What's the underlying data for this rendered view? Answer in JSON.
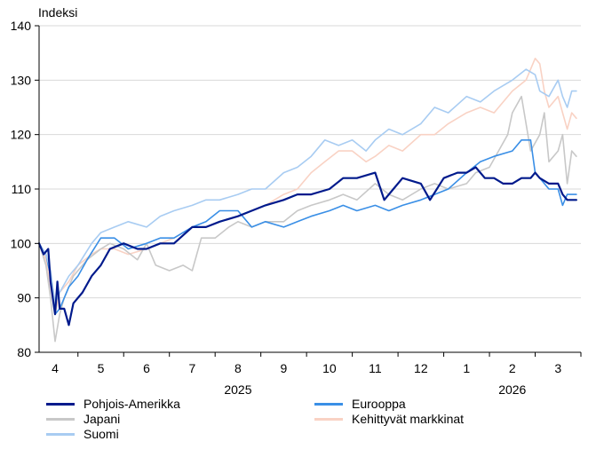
{
  "chart_data": {
    "type": "line",
    "ylabel": "Indeksi",
    "ylim": [
      80,
      140
    ],
    "yticks": [
      80,
      90,
      100,
      110,
      120,
      130,
      140
    ],
    "xlim": [
      3.65,
      15.5
    ],
    "month_labels": [
      {
        "label": "4",
        "x": 4.0
      },
      {
        "label": "5",
        "x": 5.0
      },
      {
        "label": "6",
        "x": 6.0
      },
      {
        "label": "7",
        "x": 7.0
      },
      {
        "label": "8",
        "x": 8.0
      },
      {
        "label": "9",
        "x": 9.0
      },
      {
        "label": "10",
        "x": 10.0
      },
      {
        "label": "11",
        "x": 11.0
      },
      {
        "label": "12",
        "x": 12.0
      },
      {
        "label": "1",
        "x": 13.0
      },
      {
        "label": "2",
        "x": 14.0
      },
      {
        "label": "3",
        "x": 15.0
      }
    ],
    "month_boundaries": [
      3.5,
      4.5,
      5.5,
      6.5,
      7.5,
      8.5,
      9.5,
      10.5,
      11.5,
      12.5,
      13.5,
      14.5,
      15.5
    ],
    "year_labels": [
      {
        "label": "2025",
        "x": 8.0
      },
      {
        "label": "2026",
        "x": 14.0
      }
    ],
    "series": [
      {
        "name": "Kehittyvät markkinat",
        "color": "#f9d2c4",
        "width": 1.6,
        "points": [
          [
            3.65,
            100
          ],
          [
            3.8,
            97
          ],
          [
            3.9,
            92
          ],
          [
            4.0,
            87
          ],
          [
            4.1,
            91
          ],
          [
            4.3,
            93
          ],
          [
            4.5,
            96
          ],
          [
            4.8,
            98
          ],
          [
            5.0,
            99
          ],
          [
            5.3,
            99
          ],
          [
            5.6,
            98
          ],
          [
            6.0,
            99
          ],
          [
            6.3,
            100
          ],
          [
            6.6,
            101
          ],
          [
            7.0,
            103
          ],
          [
            7.3,
            103
          ],
          [
            7.6,
            104
          ],
          [
            8.0,
            105
          ],
          [
            8.3,
            106
          ],
          [
            8.6,
            107
          ],
          [
            9.0,
            109
          ],
          [
            9.3,
            110
          ],
          [
            9.6,
            113
          ],
          [
            9.9,
            115
          ],
          [
            10.2,
            117
          ],
          [
            10.5,
            117
          ],
          [
            10.8,
            115
          ],
          [
            11.0,
            116
          ],
          [
            11.3,
            118
          ],
          [
            11.6,
            117
          ],
          [
            12.0,
            120
          ],
          [
            12.3,
            120
          ],
          [
            12.6,
            122
          ],
          [
            13.0,
            124
          ],
          [
            13.3,
            125
          ],
          [
            13.6,
            124
          ],
          [
            14.0,
            128
          ],
          [
            14.3,
            130
          ],
          [
            14.5,
            134
          ],
          [
            14.6,
            133
          ],
          [
            14.7,
            128
          ],
          [
            14.8,
            125
          ],
          [
            15.0,
            127
          ],
          [
            15.1,
            124
          ],
          [
            15.2,
            121
          ],
          [
            15.3,
            124
          ],
          [
            15.4,
            123
          ]
        ]
      },
      {
        "name": "Japani",
        "color": "#c8c8c8",
        "width": 1.6,
        "points": [
          [
            3.65,
            100
          ],
          [
            3.8,
            96
          ],
          [
            3.9,
            90
          ],
          [
            4.0,
            82
          ],
          [
            4.1,
            87
          ],
          [
            4.2,
            90
          ],
          [
            4.4,
            94
          ],
          [
            4.7,
            97
          ],
          [
            5.0,
            99
          ],
          [
            5.2,
            100
          ],
          [
            5.5,
            99
          ],
          [
            5.8,
            97
          ],
          [
            6.0,
            100
          ],
          [
            6.2,
            96
          ],
          [
            6.5,
            95
          ],
          [
            6.8,
            96
          ],
          [
            7.0,
            95
          ],
          [
            7.2,
            101
          ],
          [
            7.5,
            101
          ],
          [
            7.8,
            103
          ],
          [
            8.0,
            104
          ],
          [
            8.3,
            103
          ],
          [
            8.6,
            104
          ],
          [
            9.0,
            104
          ],
          [
            9.3,
            106
          ],
          [
            9.6,
            107
          ],
          [
            10.0,
            108
          ],
          [
            10.3,
            109
          ],
          [
            10.6,
            108
          ],
          [
            11.0,
            111
          ],
          [
            11.3,
            109
          ],
          [
            11.6,
            108
          ],
          [
            12.0,
            110
          ],
          [
            12.3,
            111
          ],
          [
            12.6,
            110
          ],
          [
            13.0,
            111
          ],
          [
            13.2,
            113
          ],
          [
            13.5,
            114
          ],
          [
            13.7,
            117
          ],
          [
            13.9,
            120
          ],
          [
            14.0,
            124
          ],
          [
            14.2,
            127
          ],
          [
            14.4,
            117
          ],
          [
            14.6,
            120
          ],
          [
            14.7,
            124
          ],
          [
            14.8,
            115
          ],
          [
            15.0,
            117
          ],
          [
            15.1,
            120
          ],
          [
            15.2,
            111
          ],
          [
            15.3,
            117
          ],
          [
            15.4,
            116
          ]
        ]
      },
      {
        "name": "Eurooppa",
        "color": "#3a8fe6",
        "width": 1.6,
        "points": [
          [
            3.65,
            100
          ],
          [
            3.8,
            98
          ],
          [
            3.9,
            94
          ],
          [
            4.0,
            87
          ],
          [
            4.1,
            88
          ],
          [
            4.3,
            92
          ],
          [
            4.5,
            94
          ],
          [
            4.7,
            97
          ],
          [
            5.0,
            101
          ],
          [
            5.3,
            101
          ],
          [
            5.6,
            99
          ],
          [
            6.0,
            100
          ],
          [
            6.3,
            101
          ],
          [
            6.6,
            101
          ],
          [
            7.0,
            103
          ],
          [
            7.3,
            104
          ],
          [
            7.6,
            106
          ],
          [
            8.0,
            106
          ],
          [
            8.3,
            103
          ],
          [
            8.6,
            104
          ],
          [
            9.0,
            103
          ],
          [
            9.3,
            104
          ],
          [
            9.6,
            105
          ],
          [
            10.0,
            106
          ],
          [
            10.3,
            107
          ],
          [
            10.6,
            106
          ],
          [
            11.0,
            107
          ],
          [
            11.3,
            106
          ],
          [
            11.6,
            107
          ],
          [
            12.0,
            108
          ],
          [
            12.3,
            109
          ],
          [
            12.6,
            110
          ],
          [
            13.0,
            113
          ],
          [
            13.3,
            115
          ],
          [
            13.6,
            116
          ],
          [
            14.0,
            117
          ],
          [
            14.2,
            119
          ],
          [
            14.4,
            119
          ],
          [
            14.5,
            113
          ],
          [
            14.6,
            112
          ],
          [
            14.8,
            110
          ],
          [
            15.0,
            110
          ],
          [
            15.1,
            107
          ],
          [
            15.2,
            109
          ],
          [
            15.3,
            109
          ],
          [
            15.4,
            109
          ]
        ]
      },
      {
        "name": "Suomi",
        "color": "#a8ccf2",
        "width": 1.6,
        "points": [
          [
            3.65,
            100
          ],
          [
            3.8,
            98
          ],
          [
            3.9,
            95
          ],
          [
            4.0,
            89
          ],
          [
            4.1,
            91
          ],
          [
            4.3,
            94
          ],
          [
            4.5,
            96
          ],
          [
            4.8,
            100
          ],
          [
            5.0,
            102
          ],
          [
            5.3,
            103
          ],
          [
            5.6,
            104
          ],
          [
            6.0,
            103
          ],
          [
            6.3,
            105
          ],
          [
            6.6,
            106
          ],
          [
            7.0,
            107
          ],
          [
            7.3,
            108
          ],
          [
            7.6,
            108
          ],
          [
            8.0,
            109
          ],
          [
            8.3,
            110
          ],
          [
            8.6,
            110
          ],
          [
            9.0,
            113
          ],
          [
            9.3,
            114
          ],
          [
            9.6,
            116
          ],
          [
            9.9,
            119
          ],
          [
            10.2,
            118
          ],
          [
            10.5,
            119
          ],
          [
            10.8,
            117
          ],
          [
            11.0,
            119
          ],
          [
            11.3,
            121
          ],
          [
            11.6,
            120
          ],
          [
            12.0,
            122
          ],
          [
            12.3,
            125
          ],
          [
            12.6,
            124
          ],
          [
            13.0,
            127
          ],
          [
            13.3,
            126
          ],
          [
            13.6,
            128
          ],
          [
            14.0,
            130
          ],
          [
            14.3,
            132
          ],
          [
            14.5,
            131
          ],
          [
            14.6,
            128
          ],
          [
            14.8,
            127
          ],
          [
            15.0,
            130
          ],
          [
            15.1,
            127
          ],
          [
            15.2,
            125
          ],
          [
            15.3,
            128
          ],
          [
            15.4,
            128
          ]
        ]
      },
      {
        "name": "Pohjois-Amerikka",
        "color": "#001a8c",
        "width": 2.2,
        "points": [
          [
            3.65,
            100
          ],
          [
            3.75,
            98
          ],
          [
            3.85,
            99
          ],
          [
            3.9,
            93
          ],
          [
            4.0,
            87
          ],
          [
            4.05,
            93
          ],
          [
            4.1,
            88
          ],
          [
            4.2,
            88
          ],
          [
            4.3,
            85
          ],
          [
            4.4,
            89
          ],
          [
            4.6,
            91
          ],
          [
            4.8,
            94
          ],
          [
            5.0,
            96
          ],
          [
            5.2,
            99
          ],
          [
            5.5,
            100
          ],
          [
            5.8,
            99
          ],
          [
            6.0,
            99
          ],
          [
            6.3,
            100
          ],
          [
            6.6,
            100
          ],
          [
            7.0,
            103
          ],
          [
            7.3,
            103
          ],
          [
            7.6,
            104
          ],
          [
            8.0,
            105
          ],
          [
            8.3,
            106
          ],
          [
            8.6,
            107
          ],
          [
            9.0,
            108
          ],
          [
            9.3,
            109
          ],
          [
            9.6,
            109
          ],
          [
            10.0,
            110
          ],
          [
            10.3,
            112
          ],
          [
            10.6,
            112
          ],
          [
            11.0,
            113
          ],
          [
            11.2,
            108
          ],
          [
            11.4,
            110
          ],
          [
            11.6,
            112
          ],
          [
            12.0,
            111
          ],
          [
            12.2,
            108
          ],
          [
            12.5,
            112
          ],
          [
            12.8,
            113
          ],
          [
            13.0,
            113
          ],
          [
            13.2,
            114
          ],
          [
            13.4,
            112
          ],
          [
            13.6,
            112
          ],
          [
            13.8,
            111
          ],
          [
            14.0,
            111
          ],
          [
            14.2,
            112
          ],
          [
            14.4,
            112
          ],
          [
            14.5,
            113
          ],
          [
            14.6,
            112
          ],
          [
            14.8,
            111
          ],
          [
            15.0,
            111
          ],
          [
            15.1,
            109
          ],
          [
            15.2,
            108
          ],
          [
            15.3,
            108
          ],
          [
            15.4,
            108
          ]
        ]
      }
    ],
    "legend": [
      {
        "name": "Pohjois-Amerikka",
        "color": "#001a8c",
        "position": "col1-row1"
      },
      {
        "name": "Japani",
        "color": "#c8c8c8",
        "position": "col1-row2"
      },
      {
        "name": "Suomi",
        "color": "#a8ccf2",
        "position": "col1-row3"
      },
      {
        "name": "Eurooppa",
        "color": "#3a8fe6",
        "position": "col2-row1"
      },
      {
        "name": "Kehittyvät markkinat",
        "color": "#f9d2c4",
        "position": "col2-row2"
      }
    ],
    "legend_placement": "bottom",
    "grid": "horizontal"
  }
}
